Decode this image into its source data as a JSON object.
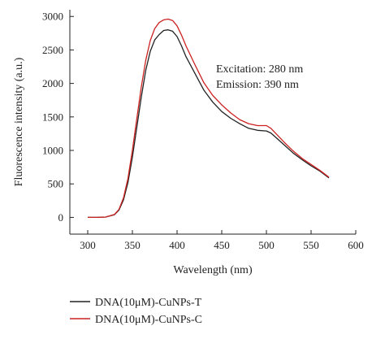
{
  "chart_data": {
    "type": "line",
    "xlabel": "Wavelength (nm)",
    "ylabel": "Fluorescence intensity (a.u.)",
    "xlim": [
      280,
      600
    ],
    "ylim": [
      -250,
      3100
    ],
    "x_ticks": [
      300,
      350,
      400,
      450,
      500,
      550,
      600
    ],
    "y_ticks": [
      0,
      500,
      1000,
      1500,
      2000,
      2500,
      3000
    ],
    "grid": false,
    "legend_position": "bottom",
    "annotations": [
      "Excitation: 280 nm",
      "Emission: 390 nm"
    ],
    "x": [
      300,
      310,
      320,
      330,
      335,
      340,
      345,
      350,
      355,
      360,
      365,
      370,
      375,
      380,
      385,
      390,
      395,
      400,
      405,
      410,
      420,
      430,
      440,
      450,
      460,
      470,
      480,
      490,
      500,
      505,
      510,
      520,
      530,
      540,
      550,
      560,
      570
    ],
    "series": [
      {
        "name": "DNA(10μM)-CuNPs-T",
        "color": "#222222",
        "values": [
          0,
          0,
          5,
          40,
          110,
          260,
          520,
          900,
          1350,
          1800,
          2200,
          2480,
          2650,
          2730,
          2790,
          2800,
          2780,
          2700,
          2560,
          2400,
          2150,
          1900,
          1720,
          1580,
          1480,
          1400,
          1330,
          1300,
          1290,
          1260,
          1200,
          1080,
          960,
          860,
          770,
          690,
          590
        ]
      },
      {
        "name": "DNA(10μM)-CuNPs-C",
        "color": "#cc2222",
        "values": [
          0,
          0,
          5,
          45,
          120,
          290,
          580,
          1000,
          1480,
          1950,
          2350,
          2640,
          2820,
          2910,
          2950,
          2960,
          2940,
          2860,
          2720,
          2560,
          2280,
          2010,
          1820,
          1680,
          1560,
          1460,
          1400,
          1370,
          1370,
          1330,
          1260,
          1120,
          990,
          880,
          790,
          700,
          600
        ]
      }
    ]
  }
}
